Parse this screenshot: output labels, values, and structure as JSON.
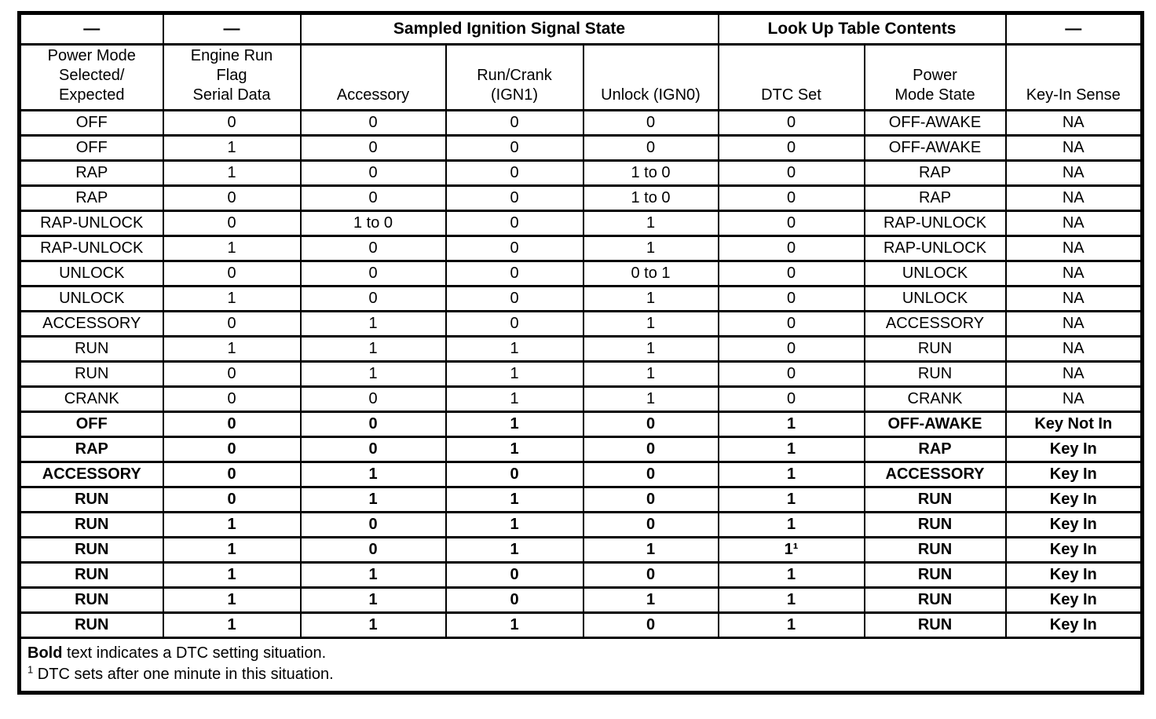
{
  "colors": {
    "ink": "#000000",
    "paper": "#ffffff"
  },
  "table": {
    "group_headers": [
      {
        "label": "—"
      },
      {
        "label": "—"
      },
      {
        "label": "Sampled Ignition Signal State"
      },
      {
        "label": "Look Up Table Contents"
      },
      {
        "label": "—"
      }
    ],
    "columns": [
      "Power Mode\nSelected/\nExpected",
      "Engine Run\nFlag\nSerial Data",
      "Accessory",
      "Run/Crank\n(IGN1)",
      "Unlock (IGN0)",
      "DTC Set",
      "Power\nMode State",
      "Key-In Sense"
    ],
    "rows": [
      {
        "bold": false,
        "cells": [
          "OFF",
          "0",
          "0",
          "0",
          "0",
          "0",
          "OFF-AWAKE",
          "NA"
        ]
      },
      {
        "bold": false,
        "cells": [
          "OFF",
          "1",
          "0",
          "0",
          "0",
          "0",
          "OFF-AWAKE",
          "NA"
        ]
      },
      {
        "bold": false,
        "cells": [
          "RAP",
          "1",
          "0",
          "0",
          "1 to 0",
          "0",
          "RAP",
          "NA"
        ]
      },
      {
        "bold": false,
        "cells": [
          "RAP",
          "0",
          "0",
          "0",
          "1 to 0",
          "0",
          "RAP",
          "NA"
        ]
      },
      {
        "bold": false,
        "cells": [
          "RAP-UNLOCK",
          "0",
          "1 to 0",
          "0",
          "1",
          "0",
          "RAP-UNLOCK",
          "NA"
        ]
      },
      {
        "bold": false,
        "cells": [
          "RAP-UNLOCK",
          "1",
          "0",
          "0",
          "1",
          "0",
          "RAP-UNLOCK",
          "NA"
        ]
      },
      {
        "bold": false,
        "cells": [
          "UNLOCK",
          "0",
          "0",
          "0",
          "0 to 1",
          "0",
          "UNLOCK",
          "NA"
        ]
      },
      {
        "bold": false,
        "cells": [
          "UNLOCK",
          "1",
          "0",
          "0",
          "1",
          "0",
          "UNLOCK",
          "NA"
        ]
      },
      {
        "bold": false,
        "cells": [
          "ACCESSORY",
          "0",
          "1",
          "0",
          "1",
          "0",
          "ACCESSORY",
          "NA"
        ]
      },
      {
        "bold": false,
        "cells": [
          "RUN",
          "1",
          "1",
          "1",
          "1",
          "0",
          "RUN",
          "NA"
        ]
      },
      {
        "bold": false,
        "cells": [
          "RUN",
          "0",
          "1",
          "1",
          "1",
          "0",
          "RUN",
          "NA"
        ]
      },
      {
        "bold": false,
        "cells": [
          "CRANK",
          "0",
          "0",
          "1",
          "1",
          "0",
          "CRANK",
          "NA"
        ]
      },
      {
        "bold": true,
        "cells": [
          "OFF",
          "0",
          "0",
          "1",
          "0",
          "1",
          "OFF-AWAKE",
          "Key Not In"
        ]
      },
      {
        "bold": true,
        "cells": [
          "RAP",
          "0",
          "0",
          "1",
          "0",
          "1",
          "RAP",
          "Key In"
        ]
      },
      {
        "bold": true,
        "cells": [
          "ACCESSORY",
          "0",
          "1",
          "0",
          "0",
          "1",
          "ACCESSORY",
          "Key In"
        ]
      },
      {
        "bold": true,
        "cells": [
          "RUN",
          "0",
          "1",
          "1",
          "0",
          "1",
          "RUN",
          "Key In"
        ]
      },
      {
        "bold": true,
        "cells": [
          "RUN",
          "1",
          "0",
          "1",
          "0",
          "1",
          "RUN",
          "Key In"
        ]
      },
      {
        "bold": true,
        "cells": [
          "RUN",
          "1",
          "0",
          "1",
          "1",
          "1¹",
          "RUN",
          "Key In"
        ]
      },
      {
        "bold": true,
        "cells": [
          "RUN",
          "1",
          "1",
          "0",
          "0",
          "1",
          "RUN",
          "Key In"
        ]
      },
      {
        "bold": true,
        "cells": [
          "RUN",
          "1",
          "1",
          "0",
          "1",
          "1",
          "RUN",
          "Key In"
        ]
      },
      {
        "bold": true,
        "cells": [
          "RUN",
          "1",
          "1",
          "1",
          "0",
          "1",
          "RUN",
          "Key In"
        ]
      }
    ]
  },
  "footnotes": {
    "legend_bold": "Bold",
    "legend_rest": " text indicates a DTC setting situation.",
    "timing_sup": "1",
    "timing_rest": " DTC sets after one minute in this situation."
  }
}
